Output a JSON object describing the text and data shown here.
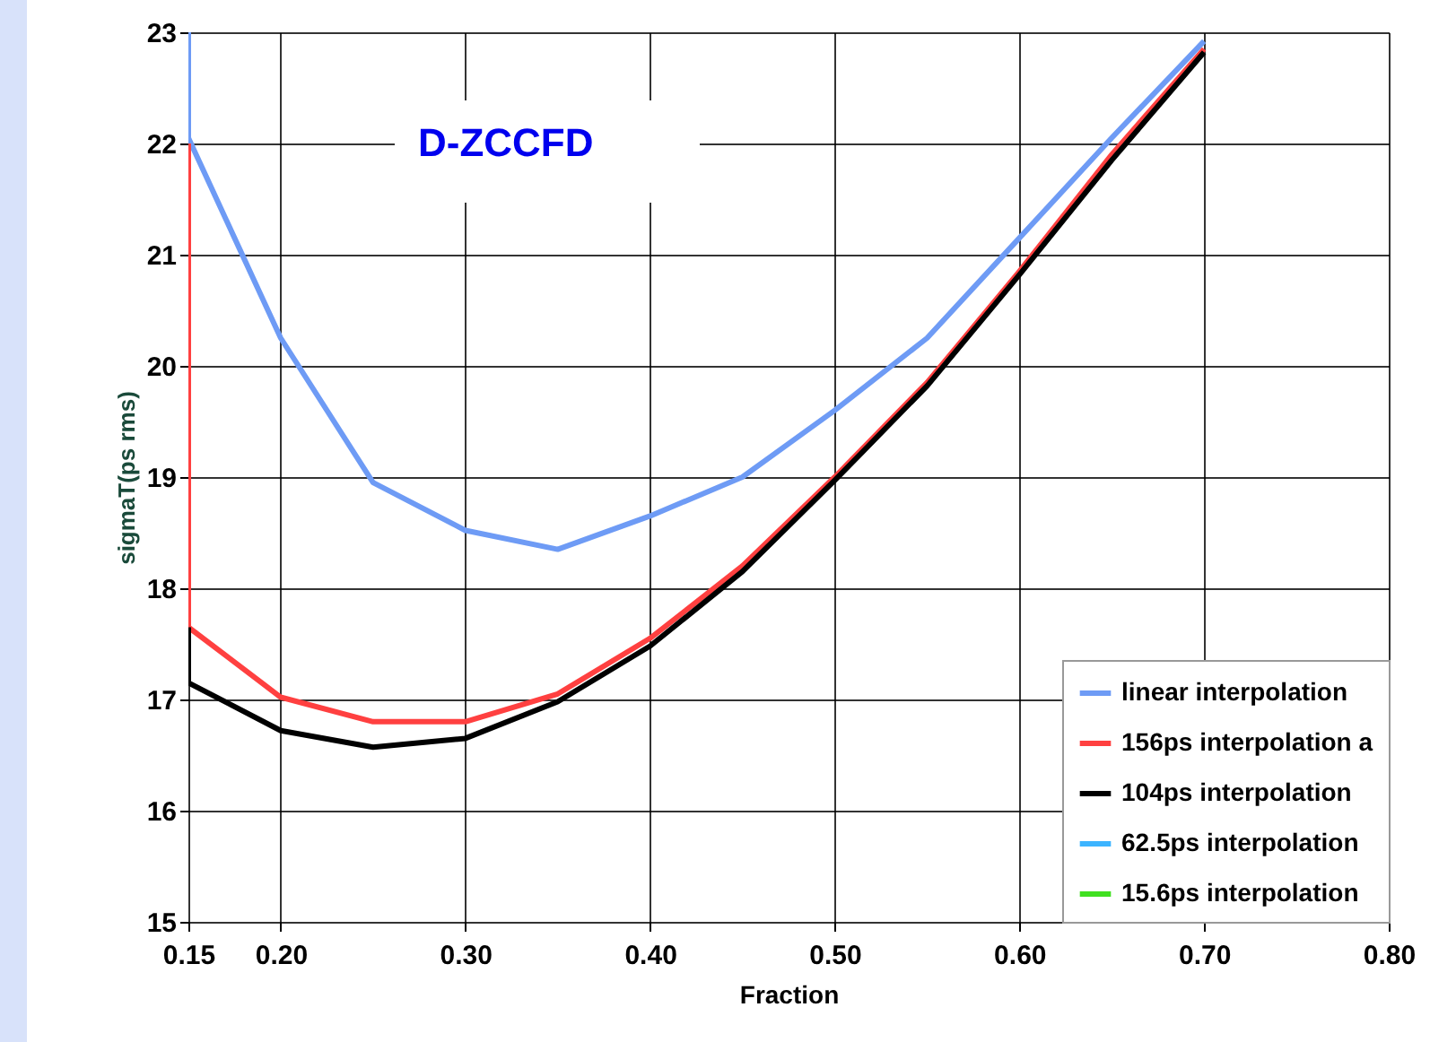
{
  "chart_data": {
    "type": "line",
    "xlabel": "Fraction",
    "ylabel": "sigmaT(ps rms)",
    "annotations": [
      "D-ZCCFD"
    ],
    "xlim": [
      0.15,
      0.8
    ],
    "xticks": [
      0.15,
      {
        "value": 0.2,
        "label": "0.20"
      },
      {
        "value": 0.3,
        "label": "0.30"
      },
      {
        "value": 0.4,
        "label": "0.40"
      },
      {
        "value": 0.5,
        "label": "0.50"
      },
      {
        "value": 0.6,
        "label": "0.60"
      },
      {
        "value": 0.7,
        "label": "0.70"
      },
      {
        "value": 0.8,
        "label": "0.80"
      }
    ],
    "ylim": [
      15,
      23
    ],
    "yticks": [
      15,
      16,
      17,
      18,
      19,
      20,
      21,
      22,
      23
    ],
    "grid": true,
    "legend": "bottom right",
    "marker": "none",
    "line_style": "solid",
    "series": [
      {
        "name": "linear interpolation",
        "color": "#6e9bf5",
        "x": [
          0.15,
          0.15,
          0.2,
          0.25,
          0.3,
          0.35,
          0.4,
          0.45,
          0.5,
          0.55,
          0.6,
          0.65,
          0.7
        ],
        "values": [
          23,
          22.05,
          20.25,
          18.95,
          18.52,
          18.35,
          18.65,
          19.0,
          19.6,
          20.25,
          21.15,
          22.05,
          22.92
        ]
      },
      {
        "name": "156ps interpolation a",
        "color": "#ff4040",
        "x": [
          0.15,
          0.15,
          0.2,
          0.25,
          0.3,
          0.35,
          0.4,
          0.45,
          0.5,
          0.55,
          0.6,
          0.65,
          0.7
        ],
        "values": [
          22.0,
          17.65,
          17.02,
          16.8,
          16.8,
          17.05,
          17.55,
          18.2,
          19.0,
          19.85,
          20.85,
          21.9,
          22.85
        ]
      },
      {
        "name": "104ps interpolation",
        "color": "#000000",
        "x": [
          0.15,
          0.15,
          0.2,
          0.25,
          0.3,
          0.35,
          0.4,
          0.45,
          0.5,
          0.55,
          0.6,
          0.65,
          0.7
        ],
        "values": [
          17.65,
          17.15,
          16.72,
          16.57,
          16.65,
          16.98,
          17.48,
          18.15,
          18.97,
          19.82,
          20.82,
          21.85,
          22.82
        ]
      },
      {
        "name": "62.5ps interpolation",
        "color": "#3cb4ff"
      },
      {
        "name": "15.6ps interpolation",
        "color": "#40e020"
      }
    ]
  }
}
